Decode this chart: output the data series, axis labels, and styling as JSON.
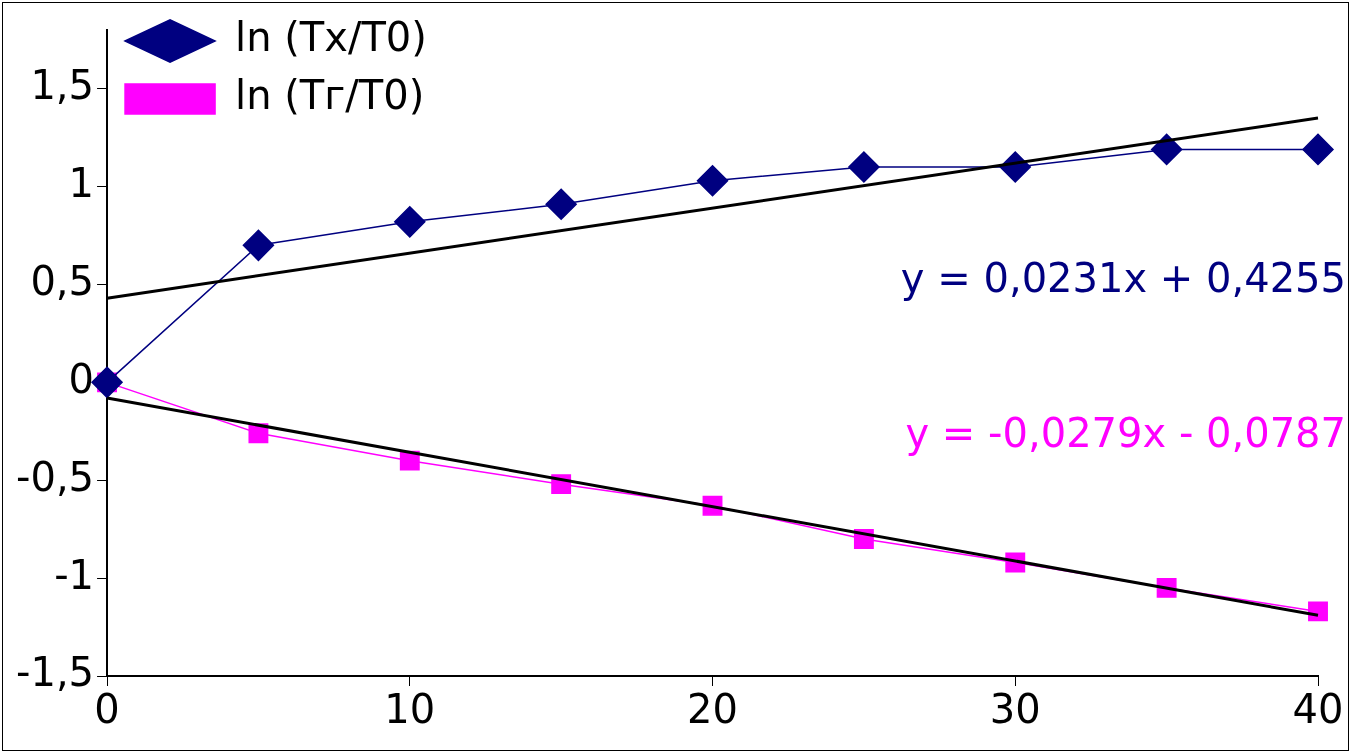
{
  "chart_data": {
    "type": "line",
    "x": [
      0,
      5,
      10,
      15,
      20,
      25,
      30,
      35,
      40
    ],
    "series": [
      {
        "name": "ln (Tx/T0)",
        "color": "#000080",
        "marker": "diamond",
        "values": [
          0,
          0.7,
          0.82,
          0.91,
          1.03,
          1.1,
          1.1,
          1.19,
          1.19
        ]
      },
      {
        "name": "ln (Tг/T0)",
        "color": "#ff00ff",
        "marker": "square",
        "values": [
          0,
          -0.26,
          -0.4,
          -0.52,
          -0.63,
          -0.8,
          -0.92,
          -1.05,
          -1.17
        ]
      },
      {
        "color": "#000000",
        "marker": "none",
        "values": [
          0.43,
          null,
          null,
          null,
          null,
          null,
          null,
          null,
          1.35
        ]
      },
      {
        "color": "#000000",
        "marker": "none",
        "values": [
          -0.08,
          null,
          null,
          null,
          null,
          null,
          null,
          null,
          -1.19
        ]
      }
    ],
    "xlim": [
      0,
      40
    ],
    "xticks": [
      0,
      10,
      20,
      30,
      40
    ],
    "ylim": [
      -1.5,
      1.8
    ],
    "yticks": [
      {
        "value": -1.5,
        "label": "-1,5"
      },
      -1,
      {
        "value": -0.5,
        "label": "-0,5"
      },
      0,
      {
        "value": 0.5,
        "label": "0,5"
      },
      1,
      {
        "value": 1.5,
        "label": "1,5"
      }
    ],
    "annotations": [
      "y = 0,0231x + 0,4255",
      "y = -0,0279x - 0,0787"
    ],
    "grid": false,
    "legend": "top left"
  }
}
